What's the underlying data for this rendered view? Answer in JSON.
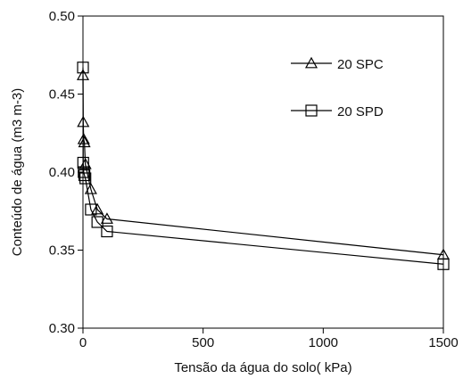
{
  "chart_data": {
    "type": "line",
    "xlabel": "Tensão da água do solo( kPa)",
    "ylabel": "Conteúdo de água (m3 m-3)",
    "xlim": [
      0,
      1500
    ],
    "ylim": [
      0.3,
      0.5
    ],
    "x_ticks": [
      "0",
      "500",
      "1000",
      "1500"
    ],
    "y_ticks": [
      "0.30",
      "0.35",
      "0.40",
      "0.45",
      "0.50"
    ],
    "grid": false,
    "legend_position": "top-right",
    "series": [
      {
        "name": "20 SPC",
        "marker": "triangle",
        "x": [
          0,
          1,
          3,
          6,
          10,
          33,
          60,
          100,
          1500
        ],
        "y": [
          0.462,
          0.432,
          0.421,
          0.419,
          0.405,
          0.389,
          0.376,
          0.37,
          0.347
        ]
      },
      {
        "name": "20 SPD",
        "marker": "square",
        "x": [
          0,
          1,
          3,
          6,
          10,
          33,
          60,
          100,
          1500
        ],
        "y": [
          0.467,
          0.406,
          0.4,
          0.398,
          0.396,
          0.376,
          0.368,
          0.362,
          0.341
        ]
      }
    ]
  }
}
